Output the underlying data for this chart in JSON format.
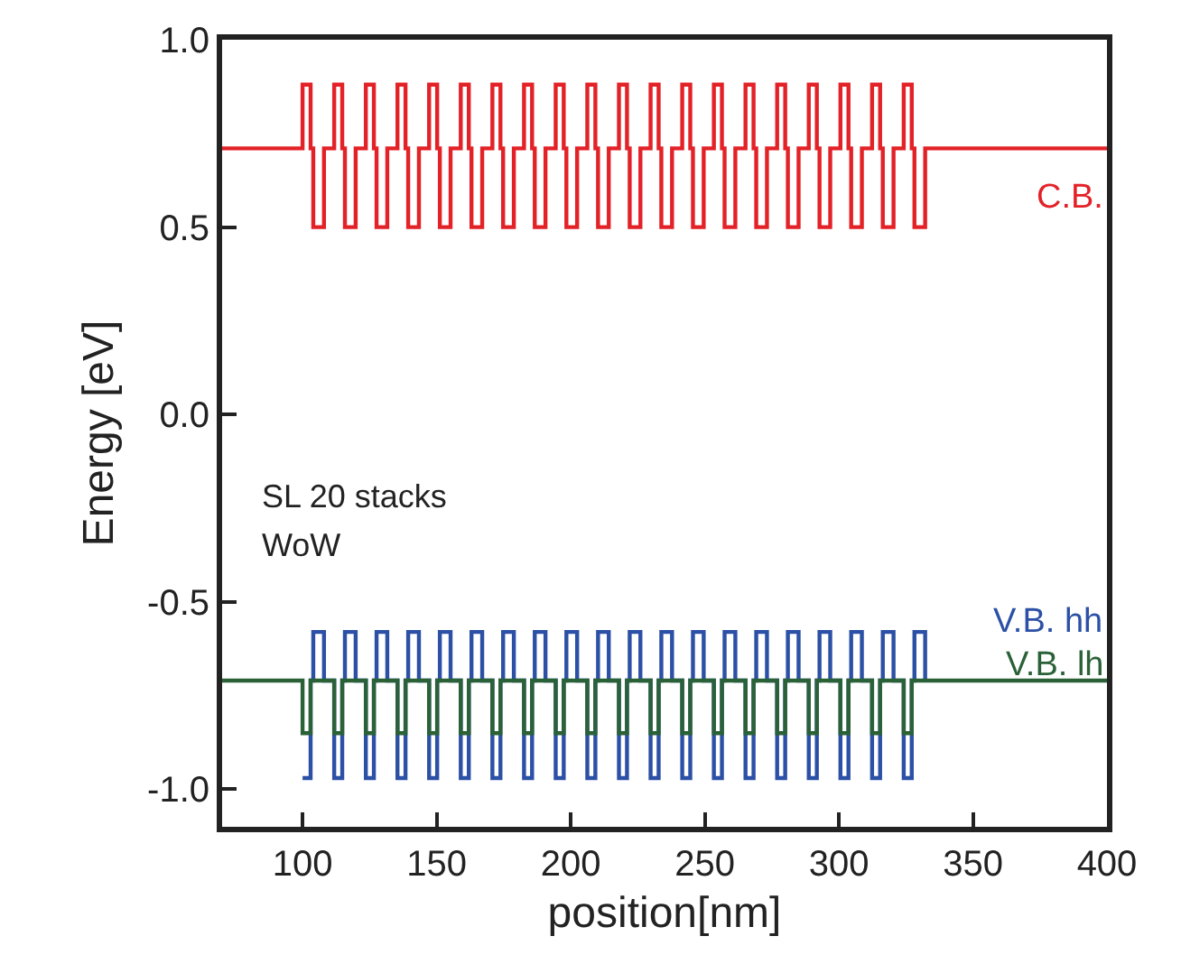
{
  "chart_data": {
    "type": "step",
    "xlabel": "position[nm]",
    "ylabel": "Energy [eV]",
    "annotations": [
      "SL 20 stacks",
      "WoW"
    ],
    "xlim": [
      70,
      400
    ],
    "xticks": [
      100,
      150,
      200,
      250,
      300,
      350,
      400
    ],
    "ylim": [
      -1.1,
      1.0
    ],
    "yticks": [
      {
        "value": -1,
        "label": "-1.0"
      },
      {
        "value": -0.5,
        "label": "-0.5"
      },
      {
        "value": 0,
        "label": "0.0"
      },
      {
        "value": 0.5,
        "label": "0.5"
      },
      {
        "value": 1,
        "label": "1.0"
      }
    ],
    "grid": false,
    "legend": false,
    "line_style": "solid",
    "marker": "none",
    "x": [
      70,
      100,
      103,
      104,
      108,
      111.8,
      114.8,
      115.8,
      119.8,
      123.6,
      126.6,
      127.6,
      131.6,
      135.4,
      138.4,
      139.4,
      143.4,
      147.2,
      150.2,
      151.2,
      155.2,
      159,
      162,
      163,
      167,
      170.8,
      173.8,
      174.8,
      178.8,
      182.6,
      185.6,
      186.6,
      190.6,
      194.4,
      197.4,
      198.4,
      202.4,
      206.2,
      209.2,
      210.2,
      214.2,
      218,
      221,
      222,
      226,
      229.8,
      232.8,
      233.8,
      237.8,
      241.6,
      244.6,
      245.6,
      249.6,
      253.4,
      256.4,
      257.4,
      261.4,
      265.2,
      268.2,
      269.2,
      273.2,
      277,
      280,
      281,
      285,
      288.8,
      291.8,
      292.8,
      296.8,
      300.6,
      303.6,
      304.6,
      308.6,
      312.4,
      315.4,
      316.4,
      320.4,
      324.2,
      327.2,
      328.2,
      332.2,
      336,
      400
    ],
    "series": [
      {
        "name": "C.B.",
        "color": "#e32228",
        "values": [
          0.71,
          0.88,
          0.71,
          0.5,
          0.71,
          0.88,
          0.71,
          0.5,
          0.71,
          0.88,
          0.71,
          0.5,
          0.71,
          0.88,
          0.71,
          0.5,
          0.71,
          0.88,
          0.71,
          0.5,
          0.71,
          0.88,
          0.71,
          0.5,
          0.71,
          0.88,
          0.71,
          0.5,
          0.71,
          0.88,
          0.71,
          0.5,
          0.71,
          0.88,
          0.71,
          0.5,
          0.71,
          0.88,
          0.71,
          0.5,
          0.71,
          0.88,
          0.71,
          0.5,
          0.71,
          0.88,
          0.71,
          0.5,
          0.71,
          0.88,
          0.71,
          0.5,
          0.71,
          0.88,
          0.71,
          0.5,
          0.71,
          0.88,
          0.71,
          0.5,
          0.71,
          0.88,
          0.71,
          0.5,
          0.71,
          0.88,
          0.71,
          0.5,
          0.71,
          0.88,
          0.71,
          0.5,
          0.71,
          0.88,
          0.71,
          0.5,
          0.71,
          0.88,
          0.71,
          0.5,
          0.71,
          0.71,
          0.71
        ]
      },
      {
        "name": "V.B. hh",
        "color": "#2b50a5",
        "values": [
          null,
          -0.97,
          -0.71,
          -0.58,
          -0.71,
          -0.97,
          -0.71,
          -0.58,
          -0.71,
          -0.97,
          -0.71,
          -0.58,
          -0.71,
          -0.97,
          -0.71,
          -0.58,
          -0.71,
          -0.97,
          -0.71,
          -0.58,
          -0.71,
          -0.97,
          -0.71,
          -0.58,
          -0.71,
          -0.97,
          -0.71,
          -0.58,
          -0.71,
          -0.97,
          -0.71,
          -0.58,
          -0.71,
          -0.97,
          -0.71,
          -0.58,
          -0.71,
          -0.97,
          -0.71,
          -0.58,
          -0.71,
          -0.97,
          -0.71,
          -0.58,
          -0.71,
          -0.97,
          -0.71,
          -0.58,
          -0.71,
          -0.97,
          -0.71,
          -0.58,
          -0.71,
          -0.97,
          -0.71,
          -0.58,
          -0.71,
          -0.97,
          -0.71,
          -0.58,
          -0.71,
          -0.97,
          -0.71,
          -0.58,
          -0.71,
          -0.97,
          -0.71,
          -0.58,
          -0.71,
          -0.97,
          -0.71,
          -0.58,
          -0.71,
          -0.97,
          -0.71,
          -0.58,
          -0.71,
          -0.97,
          -0.71,
          -0.58,
          -0.71,
          null,
          null
        ]
      },
      {
        "name": "V.B. lh",
        "color": "#2a6137",
        "values": [
          -0.71,
          -0.85,
          -0.71,
          -0.71,
          -0.71,
          -0.85,
          -0.71,
          -0.71,
          -0.71,
          -0.85,
          -0.71,
          -0.71,
          -0.71,
          -0.85,
          -0.71,
          -0.71,
          -0.71,
          -0.85,
          -0.71,
          -0.71,
          -0.71,
          -0.85,
          -0.71,
          -0.71,
          -0.71,
          -0.85,
          -0.71,
          -0.71,
          -0.71,
          -0.85,
          -0.71,
          -0.71,
          -0.71,
          -0.85,
          -0.71,
          -0.71,
          -0.71,
          -0.85,
          -0.71,
          -0.71,
          -0.71,
          -0.85,
          -0.71,
          -0.71,
          -0.71,
          -0.85,
          -0.71,
          -0.71,
          -0.71,
          -0.85,
          -0.71,
          -0.71,
          -0.71,
          -0.85,
          -0.71,
          -0.71,
          -0.71,
          -0.85,
          -0.71,
          -0.71,
          -0.71,
          -0.85,
          -0.71,
          -0.71,
          -0.71,
          -0.85,
          -0.71,
          -0.71,
          -0.71,
          -0.85,
          -0.71,
          -0.71,
          -0.71,
          -0.85,
          -0.71,
          -0.71,
          -0.71,
          -0.85,
          -0.71,
          -0.71,
          -0.71,
          -0.71,
          -0.71
        ]
      }
    ]
  }
}
